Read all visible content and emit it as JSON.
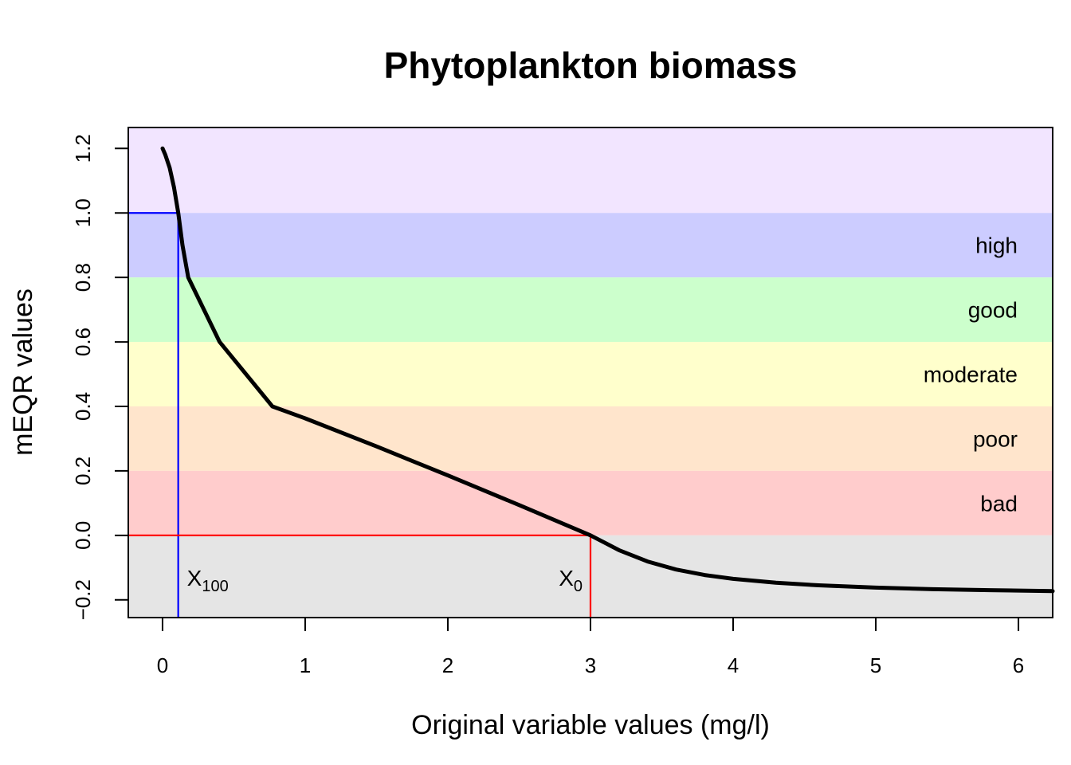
{
  "chart_data": {
    "type": "line",
    "title": "Phytoplankton biomass",
    "xlabel": "Original variable values (mg/l)",
    "ylabel": "mEQR values",
    "xlim": [
      -0.24,
      6.24
    ],
    "ylim": [
      -0.255,
      1.265
    ],
    "x_ticks": [
      0,
      1,
      2,
      3,
      4,
      5,
      6
    ],
    "x_tick_labels": [
      "0",
      "1",
      "2",
      "3",
      "4",
      "5",
      "6"
    ],
    "y_ticks": [
      -0.2,
      0.0,
      0.2,
      0.4,
      0.6,
      0.8,
      1.0,
      1.2
    ],
    "y_tick_labels": [
      "−0.2",
      "0.0",
      "0.2",
      "0.4",
      "0.6",
      "0.8",
      "1.0",
      "1.2"
    ],
    "bands": [
      {
        "label": "",
        "y0": 1.0,
        "y1": 1.265,
        "color": "#f2e5ff"
      },
      {
        "label": "high",
        "y0": 0.8,
        "y1": 1.0,
        "color": "#ccccff"
      },
      {
        "label": "good",
        "y0": 0.6,
        "y1": 0.8,
        "color": "#ccffcc"
      },
      {
        "label": "moderate",
        "y0": 0.4,
        "y1": 0.6,
        "color": "#ffffcc"
      },
      {
        "label": "poor",
        "y0": 0.2,
        "y1": 0.4,
        "color": "#ffe5cc"
      },
      {
        "label": "bad",
        "y0": 0.0,
        "y1": 0.2,
        "color": "#ffcccc"
      },
      {
        "label": "",
        "y0": -0.255,
        "y1": 0.0,
        "color": "#e5e5e5"
      }
    ],
    "series": [
      {
        "color": "#000000",
        "x": [
          0.0,
          0.02,
          0.05,
          0.08,
          0.11,
          0.14,
          0.18,
          0.4,
          0.77,
          1.0,
          1.5,
          2.0,
          2.5,
          3.0,
          3.2,
          3.4,
          3.6,
          3.8,
          4.0,
          4.3,
          4.6,
          5.0,
          5.4,
          5.8,
          6.24
        ],
        "y": [
          1.2,
          1.18,
          1.14,
          1.08,
          1.0,
          0.9,
          0.8,
          0.6,
          0.4,
          0.363,
          0.276,
          0.186,
          0.094,
          0.0,
          -0.046,
          -0.081,
          -0.106,
          -0.123,
          -0.135,
          -0.147,
          -0.155,
          -0.162,
          -0.167,
          -0.17,
          -0.173
        ]
      }
    ],
    "reference_lines": [
      {
        "name": "X100",
        "label_main": "X",
        "label_sub": "100",
        "x": 0.11,
        "y": 1.0,
        "color": "#0000ff"
      },
      {
        "name": "X0",
        "label_main": "X",
        "label_sub": "0",
        "x": 3.0,
        "y": 0.0,
        "color": "#ff0000"
      }
    ],
    "grid": false
  }
}
